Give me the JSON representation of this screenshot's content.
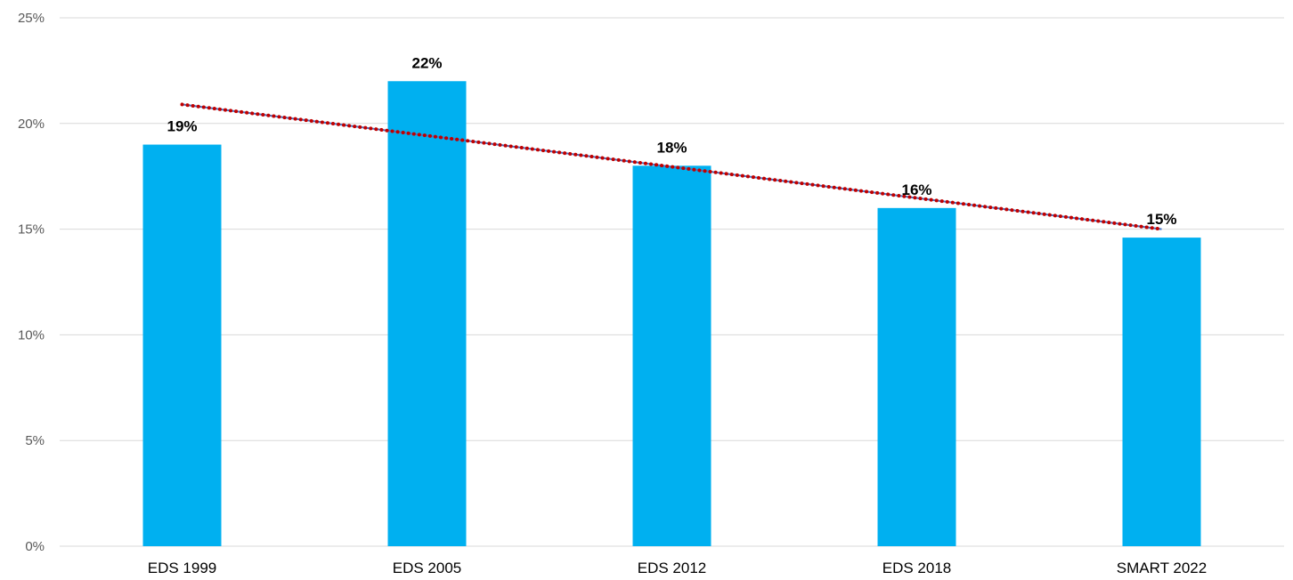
{
  "chart_data": {
    "type": "bar",
    "title": "",
    "xlabel": "",
    "ylabel": "",
    "categories": [
      "EDS 1999",
      "EDS 2005",
      "EDS 2012",
      "EDS 2018",
      "SMART 2022"
    ],
    "values": [
      19,
      22,
      18,
      16,
      14.6
    ],
    "data_labels": [
      "19%",
      "22%",
      "18%",
      "16%",
      "15%"
    ],
    "ylim": [
      0,
      25
    ],
    "y_ticks": [
      0,
      5,
      10,
      15,
      20,
      25
    ],
    "y_tick_labels": [
      "0%",
      "5%",
      "10%",
      "15%",
      "20%",
      "25%"
    ],
    "grid": true,
    "legend": "none",
    "trendline": {
      "type": "linear",
      "start_value": 20.9,
      "end_value": 15.0,
      "style": "dotted"
    },
    "colors": {
      "bar": "#00B0F0",
      "trendline": "#C00000",
      "trendline_under": "#4472C4",
      "grid": "#D9D9D9"
    }
  }
}
